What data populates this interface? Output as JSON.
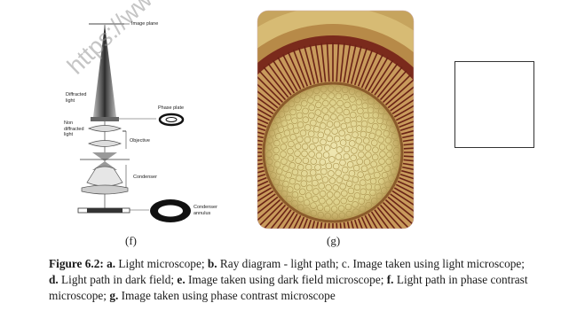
{
  "figure": {
    "diagram_labels": {
      "image_plane": "Image plane",
      "diffracted_light": "Diffracted light",
      "phase_plate": "Phase plate",
      "non_diffracted_light": "Non diffracted light",
      "objective": "Objective",
      "condenser": "Condenser",
      "condenser_annulus": "Condenser annulus"
    },
    "panel_labels": [
      "(f)",
      "(g)"
    ],
    "watermark": "https://www",
    "caption": [
      {
        "text": "Figure 6.2:",
        "bold": true
      },
      {
        "text": " ",
        "bold": false
      },
      {
        "text": "a.",
        "bold": true
      },
      {
        "text": " Light microscope; ",
        "bold": false
      },
      {
        "text": "b.",
        "bold": true
      },
      {
        "text": " Ray diagram - light path; c. Image taken using light microscope; ",
        "bold": false
      },
      {
        "text": "d.",
        "bold": true
      },
      {
        "text": " Light path in dark field; ",
        "bold": false
      },
      {
        "text": "e.",
        "bold": true
      },
      {
        "text": " Image taken using dark field microscope; ",
        "bold": false
      },
      {
        "text": "f.",
        "bold": true
      },
      {
        "text": " Light path in phase contrast microscope; ",
        "bold": false
      },
      {
        "text": "g.",
        "bold": true
      },
      {
        "text": " Image taken using phase contrast microscope",
        "bold": false
      }
    ]
  }
}
